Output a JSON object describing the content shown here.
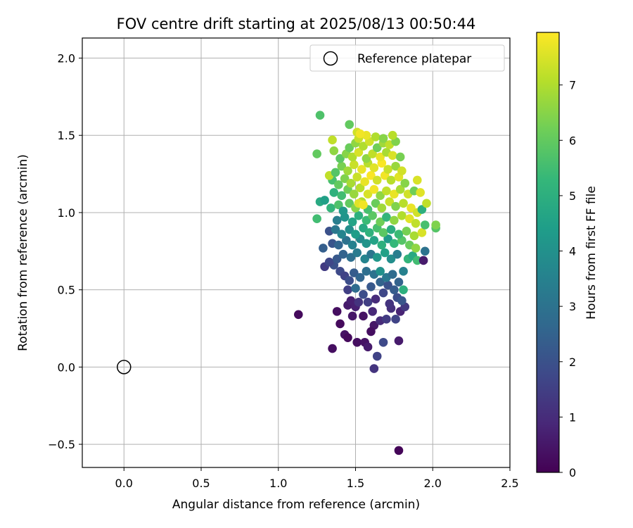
{
  "chart_data": {
    "type": "scatter",
    "title": "FOV centre drift starting at 2025/08/13 00:50:44",
    "xlabel": "Angular distance from reference (arcmin)",
    "ylabel": "Rotation from reference (arcmin)",
    "xlim": [
      -0.27,
      2.5
    ],
    "ylim": [
      -0.65,
      2.13
    ],
    "xticks": [
      0.0,
      0.5,
      1.0,
      1.5,
      2.0,
      2.5
    ],
    "xtick_labels": [
      "0.0",
      "0.5",
      "1.0",
      "1.5",
      "2.0",
      "2.5"
    ],
    "yticks": [
      -0.5,
      0.0,
      0.5,
      1.0,
      1.5,
      2.0
    ],
    "ytick_labels": [
      "−0.5",
      "0.0",
      "0.5",
      "1.0",
      "1.5",
      "2.0"
    ],
    "grid": true,
    "legend": {
      "placement": "top-right",
      "entries": [
        "Reference platepar"
      ]
    },
    "reference_point": {
      "x": 0.0,
      "y": 0.0
    },
    "colorbar": {
      "label": "Hours from first FF file",
      "colormap": "viridis",
      "range": [
        0,
        7.95
      ],
      "ticks": [
        0,
        1,
        2,
        3,
        4,
        5,
        6,
        7
      ],
      "tick_labels": [
        "0",
        "1",
        "2",
        "3",
        "4",
        "5",
        "6",
        "7"
      ]
    },
    "colormap_stops": [
      "#440154",
      "#482878",
      "#3e4989",
      "#31688e",
      "#26828e",
      "#1f9e89",
      "#35b779",
      "#6ece58",
      "#b5de2b",
      "#fde725"
    ],
    "points": [
      [
        1.13,
        0.34,
        0.2
      ],
      [
        1.35,
        0.12,
        0.3
      ],
      [
        1.62,
        -0.01,
        1.2
      ],
      [
        1.78,
        -0.54,
        0.1
      ],
      [
        1.4,
        0.28,
        0.2
      ],
      [
        1.43,
        0.21,
        0.4
      ],
      [
        1.45,
        0.19,
        0.2
      ],
      [
        1.48,
        0.33,
        0.5
      ],
      [
        1.51,
        0.16,
        0.3
      ],
      [
        1.56,
        0.16,
        0.4
      ],
      [
        1.58,
        0.13,
        0.6
      ],
      [
        1.62,
        0.27,
        0.5
      ],
      [
        1.6,
        0.23,
        0.3
      ],
      [
        1.64,
        0.07,
        1.6
      ],
      [
        1.68,
        0.16,
        1.8
      ],
      [
        1.78,
        0.17,
        0.6
      ],
      [
        1.38,
        0.36,
        0.3
      ],
      [
        1.45,
        0.4,
        0.6
      ],
      [
        1.5,
        0.39,
        0.7
      ],
      [
        1.55,
        0.33,
        0.4
      ],
      [
        1.61,
        0.36,
        0.9
      ],
      [
        1.66,
        0.3,
        1.0
      ],
      [
        1.7,
        0.31,
        1.4
      ],
      [
        1.73,
        0.38,
        1.1
      ],
      [
        1.76,
        0.31,
        1.6
      ],
      [
        1.79,
        0.36,
        0.8
      ],
      [
        1.82,
        0.39,
        1.3
      ],
      [
        1.47,
        0.43,
        0.7
      ],
      [
        1.52,
        0.42,
        1.2
      ],
      [
        1.58,
        0.42,
        1.5
      ],
      [
        1.63,
        0.44,
        1.0
      ],
      [
        1.68,
        0.48,
        1.7
      ],
      [
        1.72,
        0.41,
        1.2
      ],
      [
        1.77,
        0.45,
        1.9
      ],
      [
        1.8,
        0.43,
        2.1
      ],
      [
        1.45,
        0.5,
        1.5
      ],
      [
        1.5,
        0.51,
        2.8
      ],
      [
        1.55,
        0.47,
        1.9
      ],
      [
        1.6,
        0.52,
        2.2
      ],
      [
        1.66,
        0.55,
        2.5
      ],
      [
        1.71,
        0.53,
        2.0
      ],
      [
        1.75,
        0.5,
        2.3
      ],
      [
        1.81,
        0.5,
        5.0
      ],
      [
        1.36,
        0.66,
        2.0
      ],
      [
        1.4,
        0.62,
        1.8
      ],
      [
        1.43,
        0.59,
        1.6
      ],
      [
        1.46,
        0.56,
        1.9
      ],
      [
        1.49,
        0.61,
        2.3
      ],
      [
        1.53,
        0.58,
        2.6
      ],
      [
        1.57,
        0.62,
        2.9
      ],
      [
        1.62,
        0.6,
        3.0
      ],
      [
        1.66,
        0.62,
        4.0
      ],
      [
        1.7,
        0.58,
        3.2
      ],
      [
        1.74,
        0.6,
        2.8
      ],
      [
        1.78,
        0.55,
        2.5
      ],
      [
        1.81,
        0.62,
        3.5
      ],
      [
        1.3,
        0.65,
        1.4
      ],
      [
        1.33,
        0.68,
        1.7
      ],
      [
        1.38,
        0.7,
        2.2
      ],
      [
        1.42,
        0.73,
        2.5
      ],
      [
        1.47,
        0.71,
        2.9
      ],
      [
        1.51,
        0.74,
        3.3
      ],
      [
        1.56,
        0.7,
        3.6
      ],
      [
        1.6,
        0.73,
        3.1
      ],
      [
        1.64,
        0.71,
        4.2
      ],
      [
        1.69,
        0.74,
        4.5
      ],
      [
        1.73,
        0.7,
        3.9
      ],
      [
        1.77,
        0.73,
        3.4
      ],
      [
        1.84,
        0.7,
        5.2
      ],
      [
        1.87,
        0.72,
        4.8
      ],
      [
        1.9,
        0.69,
        5.5
      ],
      [
        1.94,
        0.69,
        0.6
      ],
      [
        1.95,
        0.75,
        3.0
      ],
      [
        1.29,
        0.77,
        2.4
      ],
      [
        1.35,
        0.8,
        2.1
      ],
      [
        1.39,
        0.79,
        2.6
      ],
      [
        1.44,
        0.82,
        3.0
      ],
      [
        1.48,
        0.79,
        3.5
      ],
      [
        1.53,
        0.83,
        3.8
      ],
      [
        1.57,
        0.8,
        4.1
      ],
      [
        1.62,
        0.82,
        4.6
      ],
      [
        1.67,
        0.79,
        5.0
      ],
      [
        1.71,
        0.83,
        4.3
      ],
      [
        1.75,
        0.8,
        5.3
      ],
      [
        1.8,
        0.82,
        5.8
      ],
      [
        1.85,
        0.79,
        6.1
      ],
      [
        1.89,
        0.77,
        6.6
      ],
      [
        1.33,
        0.88,
        2.0
      ],
      [
        1.37,
        0.89,
        3.2
      ],
      [
        1.41,
        0.86,
        3.6
      ],
      [
        1.46,
        0.89,
        3.9
      ],
      [
        1.5,
        0.86,
        4.4
      ],
      [
        1.55,
        0.9,
        4.8
      ],
      [
        1.59,
        0.87,
        5.1
      ],
      [
        1.64,
        0.9,
        5.6
      ],
      [
        1.68,
        0.87,
        5.9
      ],
      [
        1.73,
        0.89,
        4.9
      ],
      [
        1.78,
        0.86,
        5.4
      ],
      [
        1.83,
        0.88,
        6.3
      ],
      [
        1.88,
        0.85,
        6.9
      ],
      [
        1.93,
        0.87,
        7.5
      ],
      [
        1.95,
        0.92,
        5.6
      ],
      [
        2.02,
        0.9,
        5.8
      ],
      [
        2.02,
        0.92,
        6.4
      ],
      [
        1.25,
        0.96,
        5.5
      ],
      [
        1.38,
        0.95,
        3.4
      ],
      [
        1.43,
        0.97,
        4.1
      ],
      [
        1.48,
        0.94,
        4.6
      ],
      [
        1.52,
        0.98,
        5.0
      ],
      [
        1.57,
        0.95,
        5.4
      ],
      [
        1.61,
        0.98,
        5.9
      ],
      [
        1.66,
        0.94,
        6.2
      ],
      [
        1.7,
        0.97,
        5.2
      ],
      [
        1.75,
        0.95,
        6.6
      ],
      [
        1.8,
        0.98,
        7.0
      ],
      [
        1.85,
        0.96,
        7.6
      ],
      [
        1.89,
        0.93,
        7.2
      ],
      [
        1.27,
        1.07,
        4.8
      ],
      [
        1.3,
        1.08,
        4.5
      ],
      [
        1.34,
        1.03,
        5.2
      ],
      [
        1.39,
        1.05,
        5.7
      ],
      [
        1.42,
        1.01,
        4.2
      ],
      [
        1.46,
        1.06,
        6.0
      ],
      [
        1.5,
        1.03,
        6.5
      ],
      [
        1.54,
        1.07,
        7.0
      ],
      [
        1.58,
        1.02,
        5.6
      ],
      [
        1.63,
        1.06,
        6.1
      ],
      [
        1.67,
        1.03,
        6.8
      ],
      [
        1.72,
        1.07,
        7.3
      ],
      [
        1.76,
        1.04,
        6.4
      ],
      [
        1.81,
        1.06,
        7.1
      ],
      [
        1.86,
        1.03,
        7.7
      ],
      [
        1.9,
        1.0,
        7.4
      ],
      [
        1.93,
        1.02,
        5.0
      ],
      [
        1.96,
        1.06,
        7.2
      ],
      [
        1.52,
        1.06,
        7.6
      ],
      [
        1.55,
        1.05,
        7.8
      ],
      [
        1.36,
        1.13,
        5.1
      ],
      [
        1.41,
        1.11,
        5.5
      ],
      [
        1.45,
        1.15,
        6.2
      ],
      [
        1.49,
        1.12,
        6.7
      ],
      [
        1.53,
        1.16,
        7.1
      ],
      [
        1.58,
        1.12,
        7.5
      ],
      [
        1.62,
        1.15,
        7.8
      ],
      [
        1.66,
        1.11,
        6.6
      ],
      [
        1.7,
        1.14,
        7.2
      ],
      [
        1.75,
        1.12,
        7.7
      ],
      [
        1.79,
        1.15,
        6.9
      ],
      [
        1.84,
        1.12,
        7.4
      ],
      [
        1.88,
        1.14,
        6.2
      ],
      [
        1.92,
        1.13,
        7.6
      ],
      [
        1.35,
        1.21,
        5.6
      ],
      [
        1.39,
        1.18,
        6.0
      ],
      [
        1.43,
        1.22,
        6.4
      ],
      [
        1.47,
        1.19,
        6.9
      ],
      [
        1.51,
        1.23,
        7.3
      ],
      [
        1.56,
        1.2,
        7.7
      ],
      [
        1.6,
        1.24,
        7.9
      ],
      [
        1.64,
        1.21,
        7.4
      ],
      [
        1.69,
        1.24,
        7.8
      ],
      [
        1.73,
        1.21,
        7.1
      ],
      [
        1.78,
        1.23,
        7.6
      ],
      [
        1.82,
        1.19,
        6.5
      ],
      [
        1.9,
        1.21,
        7.5
      ],
      [
        1.33,
        1.24,
        7.2
      ],
      [
        1.37,
        1.26,
        5.8
      ],
      [
        1.41,
        1.3,
        6.3
      ],
      [
        1.45,
        1.27,
        6.8
      ],
      [
        1.49,
        1.31,
        7.3
      ],
      [
        1.54,
        1.28,
        7.7
      ],
      [
        1.58,
        1.32,
        7.1
      ],
      [
        1.62,
        1.29,
        7.6
      ],
      [
        1.67,
        1.32,
        7.9
      ],
      [
        1.71,
        1.28,
        7.3
      ],
      [
        1.76,
        1.3,
        6.7
      ],
      [
        1.8,
        1.27,
        7.4
      ],
      [
        1.4,
        1.35,
        5.9
      ],
      [
        1.44,
        1.38,
        6.5
      ],
      [
        1.48,
        1.36,
        7.0
      ],
      [
        1.52,
        1.39,
        7.5
      ],
      [
        1.57,
        1.35,
        6.6
      ],
      [
        1.61,
        1.38,
        7.2
      ],
      [
        1.66,
        1.36,
        7.7
      ],
      [
        1.7,
        1.39,
        6.9
      ],
      [
        1.74,
        1.37,
        7.5
      ],
      [
        1.79,
        1.36,
        6.3
      ],
      [
        1.25,
        1.38,
        6.0
      ],
      [
        1.36,
        1.4,
        6.6
      ],
      [
        1.46,
        1.42,
        6.1
      ],
      [
        1.5,
        1.45,
        6.6
      ],
      [
        1.55,
        1.43,
        7.0
      ],
      [
        1.59,
        1.46,
        7.4
      ],
      [
        1.64,
        1.42,
        6.2
      ],
      [
        1.68,
        1.45,
        6.8
      ],
      [
        1.72,
        1.44,
        7.2
      ],
      [
        1.76,
        1.46,
        6.4
      ],
      [
        1.35,
        1.47,
        7.2
      ],
      [
        1.52,
        1.48,
        7.3
      ],
      [
        1.57,
        1.5,
        7.7
      ],
      [
        1.63,
        1.49,
        7.0
      ],
      [
        1.68,
        1.48,
        6.5
      ],
      [
        1.74,
        1.5,
        7.1
      ],
      [
        1.46,
        1.57,
        6.0
      ],
      [
        1.51,
        1.52,
        7.4
      ],
      [
        1.53,
        1.51,
        7.8
      ],
      [
        1.27,
        1.63,
        5.7
      ]
    ]
  }
}
